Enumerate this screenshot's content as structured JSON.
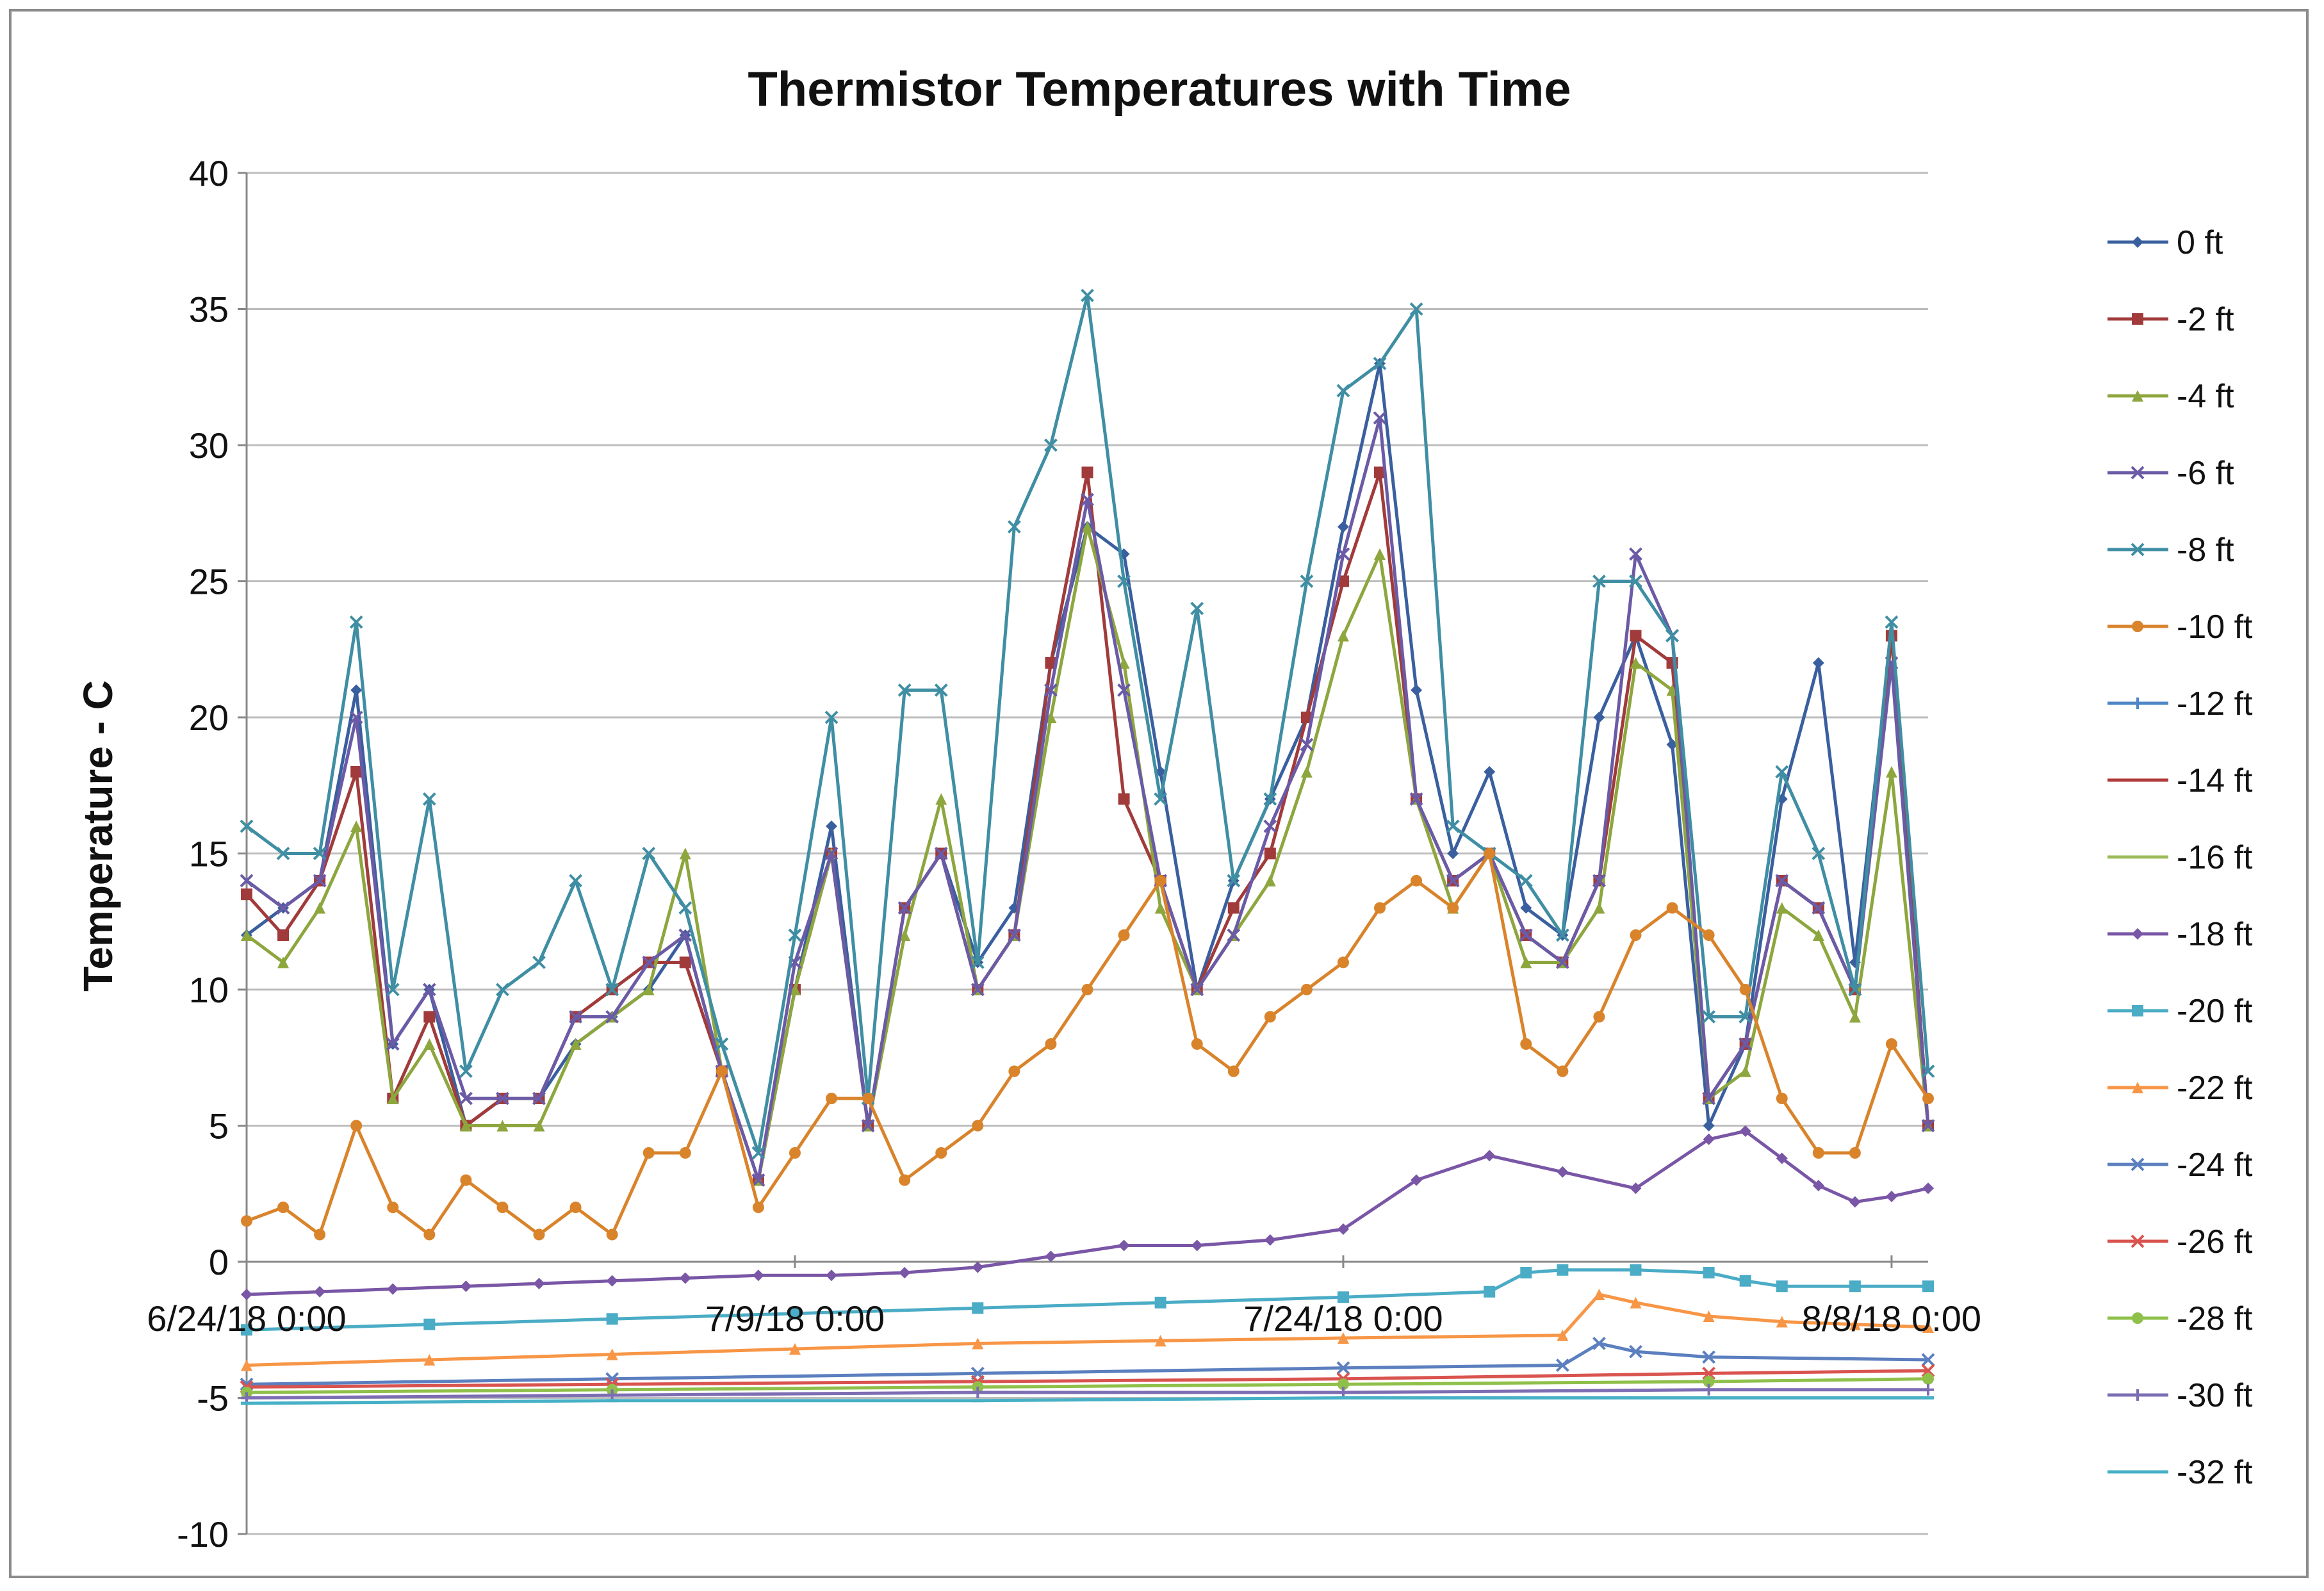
{
  "chart_data": {
    "type": "line",
    "title": "Thermistor Temperatures with Time",
    "xlabel": "",
    "ylabel": "Temperature - C",
    "ylim": [
      -10,
      40
    ],
    "yticks": [
      40,
      35,
      30,
      25,
      20,
      15,
      10,
      5,
      0,
      -5,
      -10
    ],
    "x_range_days": [
      0,
      46
    ],
    "xticks": [
      {
        "label": "6/24/18 0:00",
        "day": 0
      },
      {
        "label": "7/9/18 0:00",
        "day": 15
      },
      {
        "label": "7/24/18 0:00",
        "day": 30
      },
      {
        "label": "8/8/18 0:00",
        "day": 45
      }
    ],
    "grid": true,
    "legend_position": "right",
    "series": [
      {
        "name": "0 ft",
        "color": "#3a5f9f",
        "marker": "diamond",
        "x": [
          0,
          1,
          2,
          3,
          4,
          5,
          6,
          7,
          8,
          9,
          10,
          11,
          12,
          13,
          14,
          15,
          16,
          17,
          18,
          19,
          20,
          21,
          22,
          23,
          24,
          25,
          26,
          27,
          28,
          29,
          30,
          31,
          32,
          33,
          34,
          35,
          36,
          37,
          38,
          39,
          40,
          41,
          42,
          43,
          44,
          45,
          46
        ],
        "y": [
          12,
          13,
          14,
          21,
          8,
          10,
          5,
          6,
          6,
          8,
          9,
          10,
          12,
          7,
          3,
          10,
          16,
          5,
          13,
          15,
          11,
          13,
          22,
          27,
          26,
          18,
          10,
          14,
          17,
          20,
          27,
          33,
          21,
          15,
          18,
          13,
          12,
          20,
          23,
          19,
          5,
          8,
          17,
          22,
          11,
          23,
          5
        ]
      },
      {
        "name": "-2 ft",
        "color": "#a13b3b",
        "marker": "square",
        "x": [
          0,
          1,
          2,
          3,
          4,
          5,
          6,
          7,
          8,
          9,
          10,
          11,
          12,
          13,
          14,
          15,
          16,
          17,
          18,
          19,
          20,
          21,
          22,
          23,
          24,
          25,
          26,
          27,
          28,
          29,
          30,
          31,
          32,
          33,
          34,
          35,
          36,
          37,
          38,
          39,
          40,
          41,
          42,
          43,
          44,
          45,
          46
        ],
        "y": [
          13.5,
          12,
          14,
          18,
          6,
          9,
          5,
          6,
          6,
          9,
          10,
          11,
          11,
          7,
          3,
          10,
          15,
          5,
          13,
          15,
          10,
          12,
          22,
          29,
          17,
          14,
          10,
          13,
          15,
          20,
          25,
          29,
          17,
          14,
          15,
          12,
          11,
          14,
          23,
          22,
          6,
          8,
          14,
          13,
          10,
          23,
          5
        ]
      },
      {
        "name": "-4 ft",
        "color": "#8da63e",
        "marker": "triangle",
        "x": [
          0,
          1,
          2,
          3,
          4,
          5,
          6,
          7,
          8,
          9,
          10,
          11,
          12,
          13,
          14,
          15,
          16,
          17,
          18,
          19,
          20,
          21,
          22,
          23,
          24,
          25,
          26,
          27,
          28,
          29,
          30,
          31,
          32,
          33,
          34,
          35,
          36,
          37,
          38,
          39,
          40,
          41,
          42,
          43,
          44,
          45,
          46
        ],
        "y": [
          12,
          11,
          13,
          16,
          6,
          8,
          5,
          5,
          5,
          8,
          9,
          10,
          15,
          7,
          3,
          10,
          15,
          5,
          12,
          17,
          10,
          12,
          20,
          27,
          22,
          13,
          10,
          12,
          14,
          18,
          23,
          26,
          17,
          13,
          15,
          11,
          11,
          13,
          22,
          21,
          6,
          7,
          13,
          12,
          9,
          18,
          5
        ]
      },
      {
        "name": "-6 ft",
        "color": "#6b5aa6",
        "marker": "x",
        "x": [
          0,
          1,
          2,
          3,
          4,
          5,
          6,
          7,
          8,
          9,
          10,
          11,
          12,
          13,
          14,
          15,
          16,
          17,
          18,
          19,
          20,
          21,
          22,
          23,
          24,
          25,
          26,
          27,
          28,
          29,
          30,
          31,
          32,
          33,
          34,
          35,
          36,
          37,
          38,
          39,
          40,
          41,
          42,
          43,
          44,
          45,
          46
        ],
        "y": [
          14,
          13,
          14,
          20,
          8,
          10,
          6,
          6,
          6,
          9,
          9,
          11,
          12,
          7,
          3,
          11,
          15,
          5,
          13,
          15,
          10,
          12,
          21,
          28,
          21,
          14,
          10,
          12,
          16,
          19,
          26,
          31,
          17,
          14,
          15,
          12,
          11,
          14,
          26,
          23,
          6,
          8,
          14,
          13,
          10,
          22,
          5
        ]
      },
      {
        "name": "-8 ft",
        "color": "#3f8ea3",
        "marker": "x",
        "x": [
          0,
          1,
          2,
          3,
          4,
          5,
          6,
          7,
          8,
          9,
          10,
          11,
          12,
          13,
          14,
          15,
          16,
          17,
          18,
          19,
          20,
          21,
          22,
          23,
          24,
          25,
          26,
          27,
          28,
          29,
          30,
          31,
          32,
          33,
          34,
          35,
          36,
          37,
          38,
          39,
          40,
          41,
          42,
          43,
          44,
          45,
          46
        ],
        "y": [
          16,
          15,
          15,
          23.5,
          10,
          17,
          7,
          10,
          11,
          14,
          10,
          15,
          13,
          8,
          4,
          12,
          20,
          6,
          21,
          21,
          11,
          27,
          30,
          35.5,
          25,
          17,
          24,
          14,
          17,
          25,
          32,
          33,
          35,
          16,
          15,
          14,
          12,
          25,
          25,
          23,
          9,
          9,
          18,
          15,
          10,
          23.5,
          7
        ]
      },
      {
        "name": "-10 ft",
        "color": "#d9832b",
        "marker": "circle",
        "x": [
          0,
          1,
          2,
          3,
          4,
          5,
          6,
          7,
          8,
          9,
          10,
          11,
          12,
          13,
          14,
          15,
          16,
          17,
          18,
          19,
          20,
          21,
          22,
          23,
          24,
          25,
          26,
          27,
          28,
          29,
          30,
          31,
          32,
          33,
          34,
          35,
          36,
          37,
          38,
          39,
          40,
          41,
          42,
          43,
          44,
          45,
          46
        ],
        "y": [
          1.5,
          2,
          1,
          5,
          2,
          1,
          3,
          2,
          1,
          2,
          1,
          4,
          4,
          7,
          2,
          4,
          6,
          6,
          3,
          4,
          5,
          7,
          8,
          10,
          12,
          14,
          8,
          7,
          9,
          10,
          11,
          13,
          14,
          13,
          15,
          8,
          7,
          9,
          12,
          13,
          12,
          10,
          6,
          4,
          4,
          8,
          6
        ]
      },
      {
        "name": "-12 ft",
        "color": "#4f86c6",
        "marker": "plus",
        "x": [],
        "y": []
      },
      {
        "name": "-14 ft",
        "color": "#b03a3a",
        "marker": "dash",
        "x": [],
        "y": []
      },
      {
        "name": "-16 ft",
        "color": "#9bbb59",
        "marker": "dash",
        "x": [],
        "y": []
      },
      {
        "name": "-18 ft",
        "color": "#7a56a6",
        "marker": "diamond",
        "x": [
          0,
          2,
          4,
          6,
          8,
          10,
          12,
          14,
          16,
          18,
          20,
          22,
          24,
          26,
          28,
          30,
          32,
          34,
          36,
          38,
          40,
          41,
          42,
          43,
          44,
          45,
          46
        ],
        "y": [
          -1.2,
          -1.1,
          -1.0,
          -0.9,
          -0.8,
          -0.7,
          -0.6,
          -0.5,
          -0.5,
          -0.4,
          -0.2,
          0.2,
          0.6,
          0.6,
          0.8,
          1.2,
          3,
          3.9,
          3.3,
          2.7,
          4.5,
          4.8,
          3.8,
          2.8,
          2.2,
          2.4,
          2.7
        ]
      },
      {
        "name": "-20 ft",
        "color": "#4bacc6",
        "marker": "square",
        "x": [
          0,
          5,
          10,
          15,
          20,
          25,
          30,
          34,
          35,
          36,
          38,
          40,
          41,
          42,
          44,
          46
        ],
        "y": [
          -2.5,
          -2.3,
          -2.1,
          -1.9,
          -1.7,
          -1.5,
          -1.3,
          -1.1,
          -0.4,
          -0.3,
          -0.3,
          -0.4,
          -0.7,
          -0.9,
          -0.9,
          -0.9
        ]
      },
      {
        "name": "-22 ft",
        "color": "#f79646",
        "marker": "triangle",
        "x": [
          0,
          5,
          10,
          15,
          20,
          25,
          30,
          36,
          37,
          38,
          40,
          42,
          44,
          46
        ],
        "y": [
          -3.8,
          -3.6,
          -3.4,
          -3.2,
          -3.0,
          -2.9,
          -2.8,
          -2.7,
          -1.2,
          -1.5,
          -2.0,
          -2.2,
          -2.3,
          -2.4
        ]
      },
      {
        "name": "-24 ft",
        "color": "#5b7fbf",
        "marker": "x",
        "x": [
          0,
          10,
          20,
          30,
          36,
          37,
          38,
          40,
          46
        ],
        "y": [
          -4.5,
          -4.3,
          -4.1,
          -3.9,
          -3.8,
          -3.0,
          -3.3,
          -3.5,
          -3.6
        ]
      },
      {
        "name": "-26 ft",
        "color": "#d9534f",
        "marker": "x",
        "x": [
          0,
          10,
          20,
          30,
          40,
          46
        ],
        "y": [
          -4.6,
          -4.5,
          -4.4,
          -4.3,
          -4.1,
          -4.0
        ]
      },
      {
        "name": "-28 ft",
        "color": "#8fc04a",
        "marker": "circle",
        "x": [
          0,
          10,
          20,
          30,
          40,
          46
        ],
        "y": [
          -4.8,
          -4.7,
          -4.6,
          -4.5,
          -4.4,
          -4.3
        ]
      },
      {
        "name": "-30 ft",
        "color": "#7d6db3",
        "marker": "plus",
        "x": [
          0,
          10,
          20,
          30,
          40,
          46
        ],
        "y": [
          -5.0,
          -4.9,
          -4.8,
          -4.8,
          -4.7,
          -4.7
        ]
      },
      {
        "name": "-32 ft",
        "color": "#46b0c6",
        "marker": "dash",
        "x": [
          0,
          10,
          20,
          30,
          40,
          46
        ],
        "y": [
          -5.2,
          -5.1,
          -5.1,
          -5.0,
          -5.0,
          -5.0
        ]
      }
    ]
  }
}
